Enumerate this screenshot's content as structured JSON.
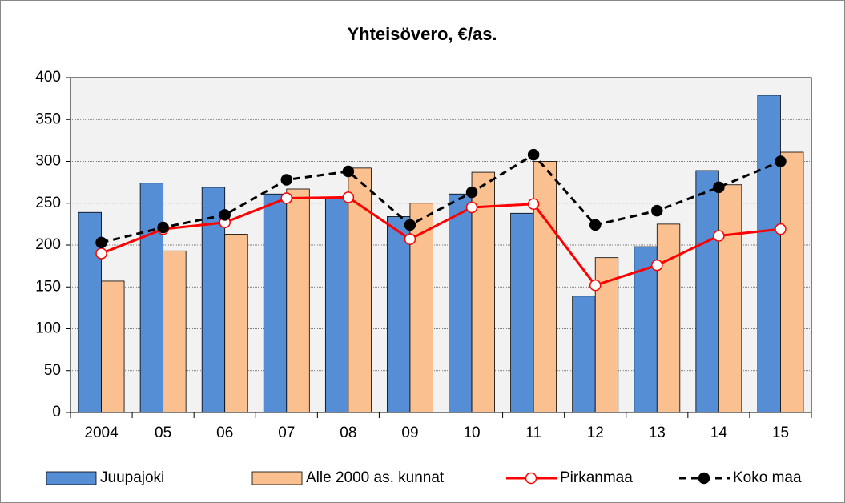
{
  "chart_data": {
    "type": "bar",
    "title": "Yhteisövero, €/as.",
    "categories": [
      "2004",
      "05",
      "06",
      "07",
      "08",
      "09",
      "10",
      "11",
      "12",
      "13",
      "14",
      "15"
    ],
    "series": [
      {
        "name": "Juupajoki",
        "type": "bar",
        "color": "#558ed5",
        "values": [
          239,
          274,
          269,
          261,
          255,
          234,
          261,
          238,
          139,
          198,
          289,
          379
        ]
      },
      {
        "name": "Alle 2000 as. kunnat",
        "type": "bar",
        "color": "#fac090",
        "values": [
          157,
          193,
          213,
          267,
          292,
          250,
          287,
          300,
          185,
          225,
          272,
          311
        ]
      },
      {
        "name": "Pirkanmaa",
        "type": "line",
        "color": "#ff0000",
        "marker_fill": "#ffffff",
        "line_style": "solid",
        "values": [
          190,
          219,
          227,
          256,
          257,
          207,
          245,
          249,
          152,
          176,
          211,
          219
        ]
      },
      {
        "name": "Koko maa",
        "type": "line",
        "color": "#000000",
        "marker_fill": "#000000",
        "line_style": "dashed",
        "values": [
          203,
          221,
          236,
          278,
          288,
          224,
          263,
          308,
          224,
          241,
          269,
          300
        ]
      }
    ],
    "ylim": [
      0,
      400
    ],
    "yticks": [
      0,
      50,
      100,
      150,
      200,
      250,
      300,
      350,
      400
    ],
    "grid": true,
    "legend": "bottom"
  }
}
